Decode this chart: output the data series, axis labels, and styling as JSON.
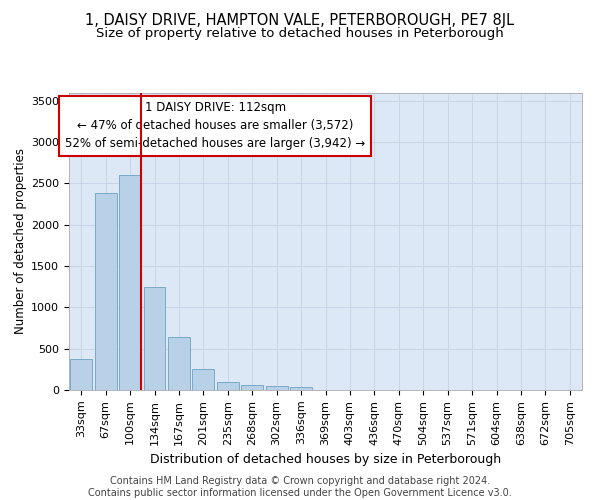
{
  "title1": "1, DAISY DRIVE, HAMPTON VALE, PETERBOROUGH, PE7 8JL",
  "title2": "Size of property relative to detached houses in Peterborough",
  "xlabel": "Distribution of detached houses by size in Peterborough",
  "ylabel": "Number of detached properties",
  "categories": [
    "33sqm",
    "67sqm",
    "100sqm",
    "134sqm",
    "167sqm",
    "201sqm",
    "235sqm",
    "268sqm",
    "302sqm",
    "336sqm",
    "369sqm",
    "403sqm",
    "436sqm",
    "470sqm",
    "504sqm",
    "537sqm",
    "571sqm",
    "604sqm",
    "638sqm",
    "672sqm",
    "705sqm"
  ],
  "values": [
    380,
    2380,
    2600,
    1250,
    640,
    260,
    100,
    60,
    50,
    35,
    0,
    0,
    0,
    0,
    0,
    0,
    0,
    0,
    0,
    0,
    0
  ],
  "bar_color": "#b8d0e8",
  "bar_edge_color": "#7aaac8",
  "grid_color": "#c8d4e8",
  "background_color": "#dce8f5",
  "vline_color": "#cc0000",
  "vline_pos": 2.45,
  "annotation_text": "1 DAISY DRIVE: 112sqm\n← 47% of detached houses are smaller (3,572)\n52% of semi-detached houses are larger (3,942) →",
  "annotation_box_color": "#cc0000",
  "footer": "Contains HM Land Registry data © Crown copyright and database right 2024.\nContains public sector information licensed under the Open Government Licence v3.0.",
  "ylim": [
    0,
    3600
  ],
  "yticks": [
    0,
    500,
    1000,
    1500,
    2000,
    2500,
    3000,
    3500
  ],
  "title1_fontsize": 10.5,
  "title2_fontsize": 9.5,
  "xlabel_fontsize": 9,
  "ylabel_fontsize": 8.5,
  "tick_fontsize": 8,
  "annotation_fontsize": 8.5,
  "footer_fontsize": 7
}
